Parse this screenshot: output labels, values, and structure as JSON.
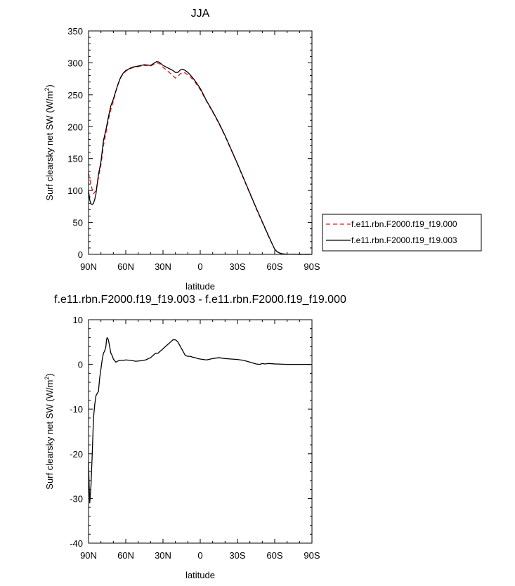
{
  "chart_data": [
    {
      "type": "line",
      "title": "JJA",
      "xlabel": "latitude",
      "ylabel_main": "Surf clearsky net SW (W/m",
      "ylabel_sup": "2",
      "ylabel_close": ")",
      "xlim": [
        90,
        -90
      ],
      "ylim": [
        0,
        350
      ],
      "xticks": [
        {
          "value": 90,
          "label": "90N"
        },
        {
          "value": 60,
          "label": "60N"
        },
        {
          "value": 30,
          "label": "30N"
        },
        {
          "value": 0,
          "label": "0"
        },
        {
          "value": -30,
          "label": "30S"
        },
        {
          "value": -60,
          "label": "60S"
        },
        {
          "value": -90,
          "label": "90S"
        }
      ],
      "yticks": [
        0,
        50,
        100,
        150,
        200,
        250,
        300,
        350
      ],
      "grid": false,
      "legend_position": "right",
      "series": [
        {
          "name": "f.e11.rbn.F2000.f19_f19.000",
          "color": "#e41a1c",
          "dash": "dashed",
          "x": [
            90,
            88,
            86,
            84,
            82,
            80,
            78,
            76,
            74,
            72,
            70,
            68,
            66,
            64,
            62,
            60,
            55,
            50,
            45,
            40,
            35,
            33,
            30,
            27,
            25,
            22,
            20,
            18,
            16,
            14,
            12,
            10,
            8,
            5,
            0,
            -5,
            -10,
            -15,
            -20,
            -25,
            -30,
            -35,
            -40,
            -45,
            -50,
            -55,
            -60,
            -62,
            -64,
            -66,
            -68,
            -70,
            -75,
            -80,
            -85,
            -90
          ],
          "y": [
            128,
            108,
            95,
            100,
            120,
            140,
            170,
            190,
            210,
            227,
            240,
            255,
            267,
            277,
            283,
            287,
            292,
            294,
            296,
            295,
            300,
            299,
            293,
            288,
            285,
            280,
            276,
            279,
            283,
            285,
            284,
            281,
            278,
            272,
            258,
            240,
            223,
            205,
            185,
            163,
            141,
            118,
            95,
            72,
            50,
            28,
            8,
            4,
            2,
            1,
            0.5,
            0.3,
            0.1,
            0,
            0,
            0
          ]
        },
        {
          "name": "f.e11.rbn.F2000.f19_f19.003",
          "color": "#000000",
          "dash": "solid",
          "x": [
            90,
            89,
            88,
            87,
            86,
            85,
            84,
            83,
            82,
            80,
            78,
            76,
            74,
            72,
            70,
            68,
            66,
            64,
            62,
            60,
            55,
            50,
            45,
            40,
            35,
            33,
            30,
            27,
            25,
            22,
            20,
            18,
            16,
            14,
            12,
            10,
            8,
            5,
            0,
            -5,
            -10,
            -15,
            -20,
            -25,
            -30,
            -35,
            -40,
            -45,
            -50,
            -55,
            -60,
            -62,
            -64,
            -66,
            -68,
            -70,
            -75,
            -80,
            -85,
            -90
          ],
          "y": [
            100,
            85,
            79,
            78,
            80,
            86,
            95,
            110,
            125,
            145,
            178,
            195,
            215,
            233,
            243,
            256,
            268,
            278,
            284,
            288,
            293,
            295,
            297,
            296,
            302,
            301,
            296,
            293,
            291,
            288,
            285,
            285,
            289,
            290,
            288,
            285,
            281,
            274,
            260,
            241,
            224,
            206,
            186,
            164,
            142,
            119,
            96,
            73,
            51,
            29,
            8,
            4,
            2,
            1,
            0.5,
            0.3,
            0.1,
            0,
            0,
            0
          ]
        }
      ]
    },
    {
      "type": "line",
      "title": "f.e11.rbn.F2000.f19_f19.003 - f.e11.rbn.F2000.f19_f19.000",
      "xlabel": "latitude",
      "ylabel_main": "Surf clearsky net SW (W/m",
      "ylabel_sup": "2",
      "ylabel_close": ")",
      "xlim": [
        90,
        -90
      ],
      "ylim": [
        -40,
        10
      ],
      "xticks": [
        {
          "value": 90,
          "label": "90N"
        },
        {
          "value": 60,
          "label": "60N"
        },
        {
          "value": 30,
          "label": "30N"
        },
        {
          "value": 0,
          "label": "0"
        },
        {
          "value": -30,
          "label": "30S"
        },
        {
          "value": -60,
          "label": "60S"
        },
        {
          "value": -90,
          "label": "90S"
        }
      ],
      "yticks": [
        -40,
        -30,
        -20,
        -10,
        0,
        10
      ],
      "grid": false,
      "series": [
        {
          "color": "#000000",
          "dash": "solid",
          "x": [
            90,
            89.5,
            89,
            88,
            87,
            86,
            85,
            84,
            83,
            82,
            81,
            80,
            79,
            78,
            77,
            76,
            75.5,
            75,
            74,
            73,
            72,
            71,
            70,
            68,
            66,
            64,
            62,
            60,
            56,
            52,
            48,
            44,
            40,
            38,
            36,
            34,
            32,
            30,
            28,
            26,
            24,
            22,
            20,
            19,
            18,
            17,
            16,
            14,
            12,
            10,
            8,
            6,
            4,
            2,
            0,
            -5,
            -10,
            -15,
            -20,
            -25,
            -30,
            -35,
            -40,
            -45,
            -48,
            -50,
            -52,
            -55,
            -60,
            -65,
            -70,
            -80,
            -90
          ],
          "y": [
            -22,
            -27,
            -31,
            -27,
            -20,
            -12,
            -9,
            -7,
            -6.5,
            -6,
            -3,
            -1,
            1,
            2.5,
            3,
            4,
            5.5,
            6,
            5.5,
            4,
            2.5,
            2,
            1.2,
            0.5,
            0.8,
            0.9,
            0.9,
            1,
            0.9,
            0.7,
            0.8,
            1,
            1.5,
            2,
            2.5,
            2.5,
            3,
            3.5,
            4,
            4.5,
            5,
            5.5,
            5.5,
            5.3,
            5,
            4.5,
            4,
            3,
            2,
            1.8,
            1.8,
            1.6,
            1.5,
            1.3,
            1.2,
            1,
            1.3,
            1.5,
            1.3,
            1.2,
            1.1,
            0.9,
            0.5,
            0.1,
            0,
            0.2,
            0.1,
            0.2,
            0.1,
            0.05,
            0,
            0,
            0
          ]
        }
      ]
    }
  ]
}
